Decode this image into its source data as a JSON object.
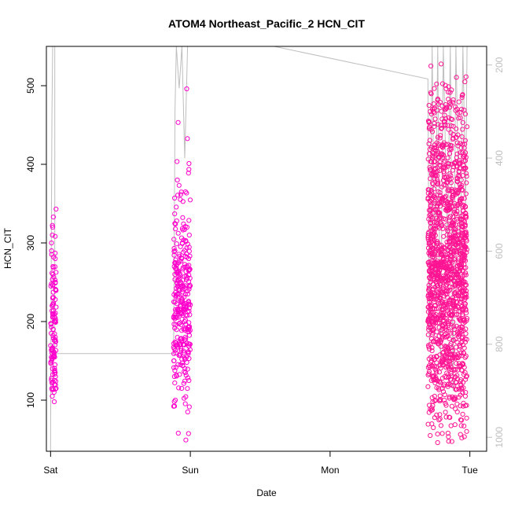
{
  "chart_data": {
    "type": "scatter",
    "title": "ATOM4 Northeast_Pacific_2 HCN_CIT",
    "xlabel": "Date",
    "ylabel": "HCN_CIT",
    "x_ticks": [
      "Sat",
      "Sun",
      "Mon",
      "Tue"
    ],
    "xlim_days": [
      -0.03,
      3.12
    ],
    "ylim": [
      35,
      550
    ],
    "y_ticks": [
      100,
      200,
      300,
      400,
      500
    ],
    "secondary_axis": {
      "position": "right",
      "ylim_reversed": [
        1030,
        160
      ],
      "ticks": [
        200,
        400,
        600,
        800,
        1000
      ],
      "color": "#bebebe"
    },
    "colors": {
      "point": "#ff1493",
      "point_alt": "#ff00cc",
      "line": "#bebebe"
    },
    "series": [
      {
        "name": "HCN_CIT",
        "clusters": [
          {
            "x_range": [
              0.0,
              0.04
            ],
            "count": 120,
            "y_samples": [
              98,
              105,
              110,
              115,
              120,
              125,
              128,
              130,
              133,
              135,
              138,
              140,
              145,
              150,
              155,
              160,
              165,
              170,
              175,
              180,
              185,
              190,
              200,
              210,
              220,
              230,
              240,
              250,
              260,
              270,
              280,
              290,
              300,
              310,
              320,
              333,
              343
            ]
          },
          {
            "x_range": [
              0.88,
              1.0
            ],
            "count": 320,
            "y_samples": [
              58,
              85,
              100,
              115,
              125,
              130,
              135,
              140,
              145,
              150,
              160,
              170,
              180,
              190,
              200,
              205,
              210,
              215,
              220,
              225,
              230,
              235,
              240,
              245,
              250,
              260,
              270,
              280,
              290,
              300,
              310,
              320,
              328,
              357,
              380,
              401,
              496
            ]
          },
          {
            "x_range": [
              2.7,
              2.98
            ],
            "count": 1400,
            "y_samples": [
              46,
              55,
              65,
              75,
              85,
              100,
              115,
              130,
              145,
              160,
              175,
              190,
              200,
              215,
              230,
              245,
              260,
              275,
              290,
              305,
              320,
              335,
              350,
              365,
              380,
              395,
              410,
              425,
              440,
              455,
              470,
              485,
              505,
              525
            ]
          }
        ]
      }
    ],
    "pressure_line": [
      [
        0.0,
        1030
      ],
      [
        0.005,
        600
      ],
      [
        0.01,
        300
      ],
      [
        0.015,
        160
      ],
      [
        0.03,
        160
      ],
      [
        0.03,
        820
      ],
      [
        0.88,
        820
      ],
      [
        0.89,
        300
      ],
      [
        0.9,
        160
      ],
      [
        0.92,
        250
      ],
      [
        0.94,
        160
      ],
      [
        0.96,
        400
      ],
      [
        0.98,
        160
      ],
      [
        1.0,
        160
      ],
      [
        1.6,
        160
      ],
      [
        2.7,
        230
      ],
      [
        2.71,
        800
      ],
      [
        2.73,
        160
      ],
      [
        2.75,
        700
      ],
      [
        2.77,
        160
      ],
      [
        2.79,
        850
      ],
      [
        2.81,
        160
      ],
      [
        2.84,
        600
      ],
      [
        2.86,
        160
      ],
      [
        2.88,
        900
      ],
      [
        2.9,
        160
      ],
      [
        2.93,
        650
      ],
      [
        2.95,
        160
      ],
      [
        2.97,
        500
      ],
      [
        2.98,
        160
      ]
    ]
  }
}
